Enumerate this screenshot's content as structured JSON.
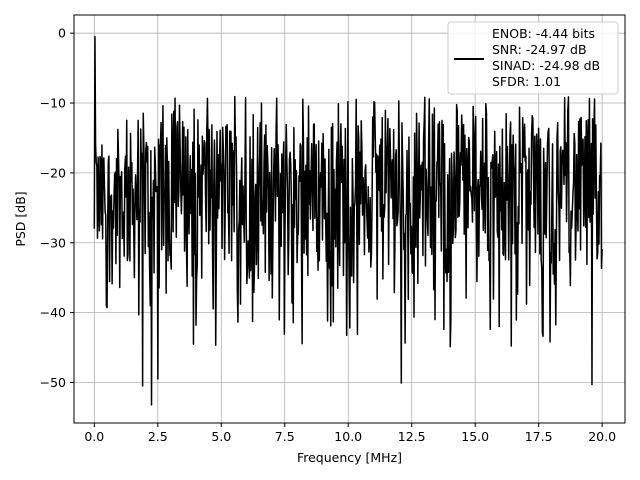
{
  "chart_data": {
    "type": "line",
    "title": "",
    "xlabel": "Frequency [MHz]",
    "ylabel": "PSD [dB]",
    "xlim": [
      -0.8,
      20.9
    ],
    "ylim": [
      -55.8,
      2.6
    ],
    "xticks": [
      0.0,
      2.5,
      5.0,
      7.5,
      10.0,
      12.5,
      15.0,
      17.5,
      20.0
    ],
    "xtick_labels": [
      "0.0",
      "2.5",
      "5.0",
      "7.5",
      "10.0",
      "12.5",
      "15.0",
      "17.5",
      "20.0"
    ],
    "yticks": [
      0,
      -10,
      -20,
      -30,
      -40,
      -50
    ],
    "ytick_labels": [
      "0",
      "−10",
      "−20",
      "−30",
      "−40",
      "−50"
    ],
    "grid": true,
    "line_color": "#000000",
    "legend": {
      "placement": "top-right",
      "entries": [
        "ENOB: -4.44 bits",
        "SNR: -24.97 dB",
        "SINAD: -24.98 dB",
        "SFDR: 1.01"
      ]
    },
    "series": [
      {
        "x_start": 0.0,
        "x_end": 20.0,
        "points": 800,
        "values_summary": {
          "peak": -0.5,
          "typical_upper_envelope": -12,
          "typical_lower_envelope": -37,
          "min": -53.2
        },
        "notable_minima": [
          [
            1.9,
            -50.5
          ],
          [
            2.25,
            -53.2
          ],
          [
            2.5,
            -49.5
          ],
          [
            12.1,
            -50.1
          ],
          [
            19.6,
            -50.3
          ]
        ]
      }
    ]
  }
}
